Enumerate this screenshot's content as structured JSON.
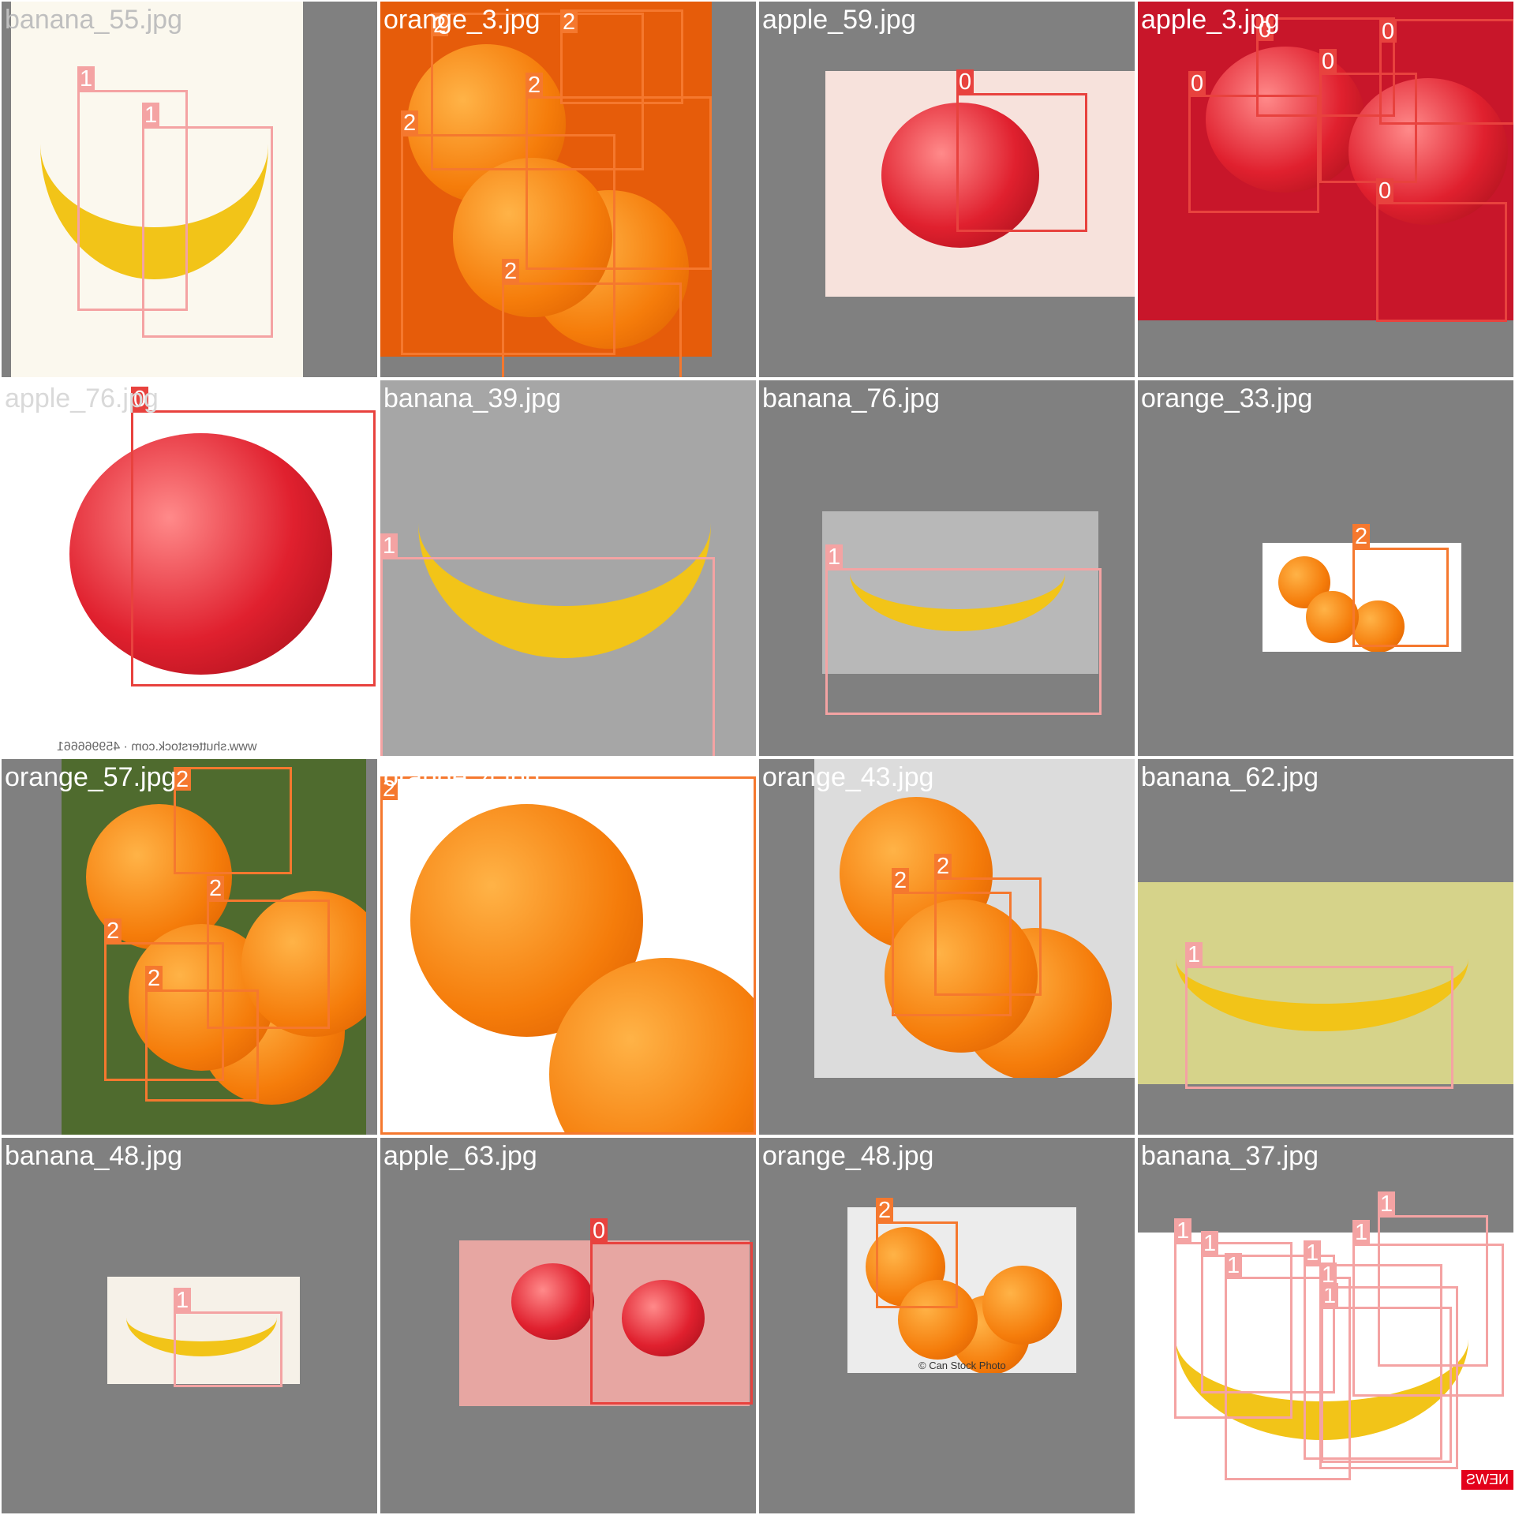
{
  "class_colors": {
    "0": "#e8423e",
    "1": "#f4a3a3",
    "2": "#f5782e"
  },
  "tiles": [
    {
      "file": "banana_55.jpg",
      "title_color": "#bfbfbf",
      "photo": {
        "bg": "#fbf8ee",
        "fruit": "banana"
      },
      "boxes": [
        {
          "cls": "1"
        },
        {
          "cls": "1"
        }
      ]
    },
    {
      "file": "orange_3.jpg",
      "title_color": "#ffffff",
      "photo": {
        "bg": "#e65c0a",
        "fruit": "orange"
      },
      "boxes": [
        {
          "cls": "2"
        },
        {
          "cls": "2"
        },
        {
          "cls": "2"
        },
        {
          "cls": "2"
        },
        {
          "cls": "2"
        }
      ]
    },
    {
      "file": "apple_59.jpg",
      "title_color": "#ffffff",
      "photo": {
        "bg": "#f7e2dc",
        "fruit": "apple"
      },
      "boxes": [
        {
          "cls": "0"
        }
      ]
    },
    {
      "file": "apple_3.jpg",
      "title_color": "#ffffff",
      "photo": {
        "bg": "#c8162a",
        "fruit": "apple"
      },
      "boxes": [
        {
          "cls": "0"
        },
        {
          "cls": "0"
        },
        {
          "cls": "0"
        },
        {
          "cls": "0"
        },
        {
          "cls": "0"
        }
      ]
    },
    {
      "file": "apple_76.jpg",
      "title_color": "#d9d9d9",
      "photo": {
        "bg": "#ffffff",
        "fruit": "apple"
      },
      "watermark": "www.shutterstock.com · 459966661",
      "boxes": [
        {
          "cls": "0"
        }
      ]
    },
    {
      "file": "banana_39.jpg",
      "title_color": "#ffffff",
      "photo": {
        "bg": "#a6a6a6",
        "fruit": "banana"
      },
      "boxes": [
        {
          "cls": "1"
        }
      ]
    },
    {
      "file": "banana_76.jpg",
      "title_color": "#ffffff",
      "photo": {
        "bg": "#b8b8b8",
        "fruit": "banana"
      },
      "boxes": [
        {
          "cls": "1"
        }
      ]
    },
    {
      "file": "orange_33.jpg",
      "title_color": "#ffffff",
      "photo": {
        "bg": "#ffffff",
        "fruit": "orange"
      },
      "boxes": [
        {
          "cls": "2"
        }
      ]
    },
    {
      "file": "orange_57.jpg",
      "title_color": "#ffffff",
      "photo": {
        "bg": "#4f6b2e",
        "fruit": "orange"
      },
      "boxes": [
        {
          "cls": "2"
        },
        {
          "cls": "2"
        },
        {
          "cls": "2"
        },
        {
          "cls": "2"
        }
      ]
    },
    {
      "file": "orange_4.jpg",
      "title_color": "#ffffff",
      "photo": {
        "bg": "#ffffff",
        "fruit": "orange"
      },
      "boxes": [
        {
          "cls": "2"
        }
      ]
    },
    {
      "file": "orange_43.jpg",
      "title_color": "#ffffff",
      "photo": {
        "bg": "#dcdcdc",
        "fruit": "orange"
      },
      "boxes": [
        {
          "cls": "2"
        },
        {
          "cls": "2"
        }
      ]
    },
    {
      "file": "banana_62.jpg",
      "title_color": "#ffffff",
      "photo": {
        "bg": "#d6d38a",
        "fruit": "banana"
      },
      "boxes": [
        {
          "cls": "1"
        }
      ]
    },
    {
      "file": "banana_48.jpg",
      "title_color": "#ffffff",
      "photo": {
        "bg": "#f6f1e8",
        "fruit": "banana"
      },
      "boxes": [
        {
          "cls": "1"
        }
      ]
    },
    {
      "file": "apple_63.jpg",
      "title_color": "#ffffff",
      "photo": {
        "bg": "#e7a6a2",
        "fruit": "apple"
      },
      "boxes": [
        {
          "cls": "0"
        }
      ]
    },
    {
      "file": "orange_48.jpg",
      "title_color": "#ffffff",
      "photo": {
        "bg": "#ececec",
        "fruit": "orange"
      },
      "caption": "© Can Stock Photo",
      "boxes": [
        {
          "cls": "2"
        }
      ]
    },
    {
      "file": "banana_37.jpg",
      "title_color": "#ffffff",
      "photo": {
        "bg": "#ffffff",
        "fruit": "banana"
      },
      "badge": "NEWS",
      "boxes": [
        {
          "cls": "1"
        },
        {
          "cls": "1"
        },
        {
          "cls": "1"
        },
        {
          "cls": "1"
        },
        {
          "cls": "1"
        },
        {
          "cls": "1"
        },
        {
          "cls": "1"
        },
        {
          "cls": "1"
        }
      ]
    }
  ]
}
